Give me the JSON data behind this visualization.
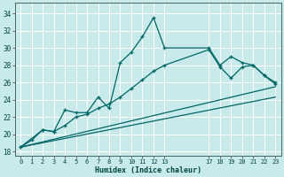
{
  "xlabel": "Humidex (Indice chaleur)",
  "background_color": "#c8eaea",
  "grid_color": "#ffffff",
  "line_color": "#006666",
  "xlim": [
    -0.5,
    23.5
  ],
  "ylim": [
    17.5,
    35.2
  ],
  "xticks": [
    0,
    1,
    2,
    3,
    4,
    5,
    6,
    7,
    8,
    9,
    10,
    11,
    12,
    13,
    17,
    18,
    19,
    20,
    21,
    22,
    23
  ],
  "xtick_labels": [
    "0",
    "1",
    "2",
    "3",
    "4",
    "5",
    "6",
    "7",
    "8",
    "9",
    "10",
    "11",
    "12",
    "13",
    "17",
    "18",
    "19",
    "20",
    "21",
    "22",
    "23"
  ],
  "yticks": [
    18,
    20,
    22,
    24,
    26,
    28,
    30,
    32,
    34
  ],
  "curve1_x": [
    0,
    1,
    2,
    3,
    4,
    5,
    6,
    7,
    8,
    9,
    10,
    11,
    12,
    13,
    17,
    18,
    19,
    20,
    21,
    22,
    23
  ],
  "curve1_y": [
    18.5,
    19.3,
    20.5,
    20.3,
    22.8,
    22.5,
    22.5,
    24.3,
    23.0,
    28.3,
    29.5,
    31.3,
    33.5,
    30.0,
    30.0,
    28.0,
    29.0,
    28.3,
    28.0,
    26.8,
    26.0
  ],
  "curve2_x": [
    0,
    2,
    3,
    4,
    5,
    6,
    7,
    8,
    9,
    10,
    11,
    12,
    13,
    17,
    18,
    19,
    20,
    21,
    22,
    23
  ],
  "curve2_y": [
    18.5,
    20.5,
    20.3,
    21.0,
    22.0,
    22.3,
    23.0,
    23.5,
    24.3,
    25.3,
    26.3,
    27.3,
    28.0,
    29.8,
    27.8,
    26.5,
    27.8,
    28.0,
    26.8,
    25.8
  ],
  "line1_x": [
    0,
    23
  ],
  "line1_y": [
    18.5,
    25.5
  ],
  "line2_x": [
    0,
    23
  ],
  "line2_y": [
    18.5,
    24.3
  ]
}
